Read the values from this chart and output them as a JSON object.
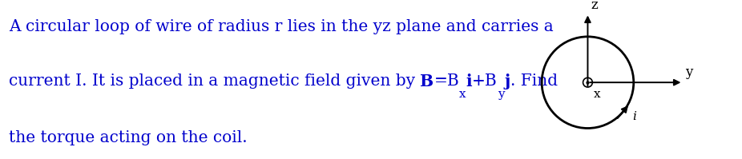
{
  "text_color": "#0000cc",
  "diagram_color": "#000000",
  "axis_color": "#000000",
  "background": "#ffffff",
  "circle_r": 0.78,
  "font_size_main": 14.5,
  "label_z": "z",
  "label_y": "y",
  "label_x": "x",
  "label_i": "i",
  "line1": "A circular loop of wire of radius r lies in the yz plane and carries a",
  "line2_pre": "current I. It is placed in a magnetic field given by ",
  "line2_B": "B",
  "line2_eq": "=B",
  "line2_x": "x",
  "line2_i": "i",
  "line2_plus": "+B",
  "line2_y": "y",
  "line2_j": "j",
  "line2_end": ". Find",
  "line3": "the torque acting on the coil."
}
